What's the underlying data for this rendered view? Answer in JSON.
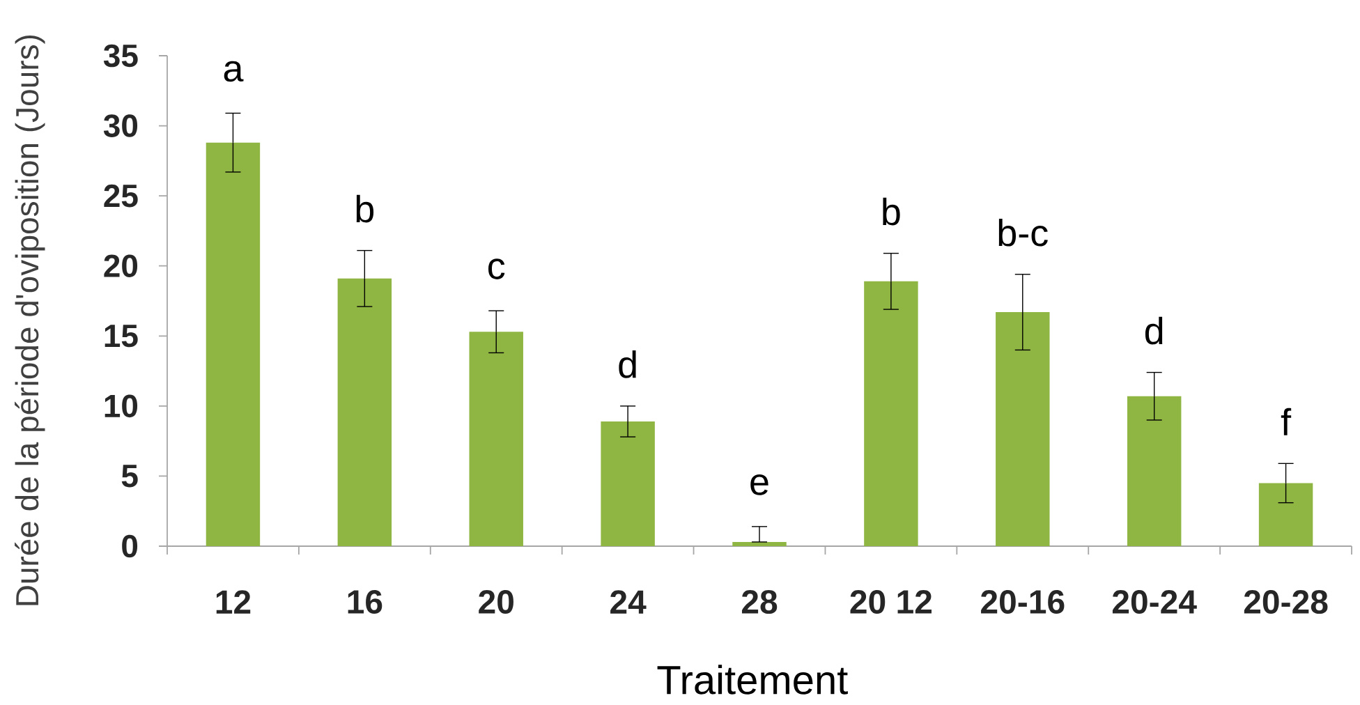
{
  "chart_data": {
    "type": "bar",
    "xlabel": "Traitement",
    "ylabel": "Durée de la période d'oviposition (Jours)",
    "categories": [
      "12",
      "16",
      "20",
      "24",
      "28",
      "20 12",
      "20-16",
      "20-24",
      "20-28"
    ],
    "values": [
      28.8,
      19.1,
      15.3,
      8.9,
      0.3,
      18.9,
      16.7,
      10.7,
      4.5
    ],
    "errors": [
      2.1,
      2.0,
      1.5,
      1.1,
      [
        0.3,
        1.4
      ],
      2.0,
      2.7,
      1.7,
      1.4
    ],
    "color": "#8fb542",
    "ylim": [
      0,
      35
    ],
    "yticks": [
      0,
      5,
      10,
      15,
      20,
      25,
      30,
      35
    ],
    "annotations": [
      "a",
      "b",
      "c",
      "d",
      "e",
      "b",
      "b-c",
      "d",
      "f"
    ]
  }
}
